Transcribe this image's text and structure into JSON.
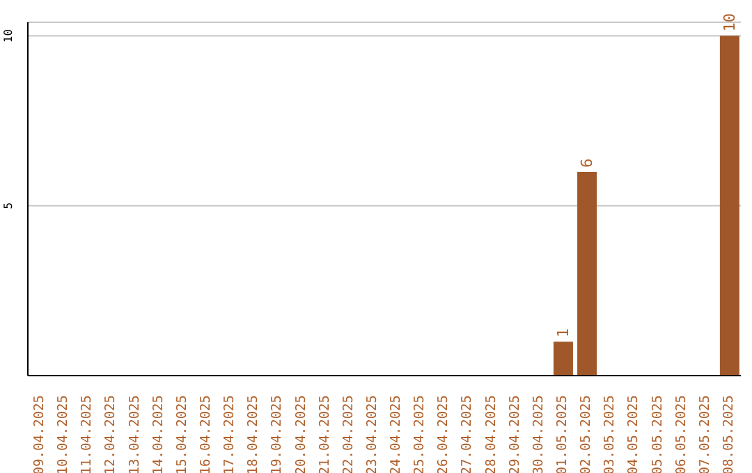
{
  "chart_data": {
    "type": "bar",
    "categories": [
      "09.04.2025",
      "10.04.2025",
      "11.04.2025",
      "12.04.2025",
      "13.04.2025",
      "14.04.2025",
      "15.04.2025",
      "16.04.2025",
      "17.04.2025",
      "18.04.2025",
      "19.04.2025",
      "20.04.2025",
      "21.04.2025",
      "22.04.2025",
      "23.04.2025",
      "24.04.2025",
      "25.04.2025",
      "26.04.2025",
      "27.04.2025",
      "28.04.2025",
      "29.04.2025",
      "30.04.2025",
      "01.05.2025",
      "02.05.2025",
      "03.05.2025",
      "04.05.2025",
      "05.05.2025",
      "06.05.2025",
      "07.05.2025",
      "08.05.2025"
    ],
    "values": [
      0,
      0,
      0,
      0,
      0,
      0,
      0,
      0,
      0,
      0,
      0,
      0,
      0,
      0,
      0,
      0,
      0,
      0,
      0,
      0,
      0,
      0,
      1,
      6,
      0,
      0,
      0,
      0,
      0,
      10
    ],
    "value_labels": [
      null,
      null,
      null,
      null,
      null,
      null,
      null,
      null,
      null,
      null,
      null,
      null,
      null,
      null,
      null,
      null,
      null,
      null,
      null,
      null,
      null,
      null,
      "1",
      "6",
      null,
      null,
      null,
      null,
      null,
      "10"
    ],
    "color": "#a0572a",
    "ylim": [
      0,
      10.4
    ],
    "yticks": [
      5,
      10
    ],
    "grid": "y"
  }
}
